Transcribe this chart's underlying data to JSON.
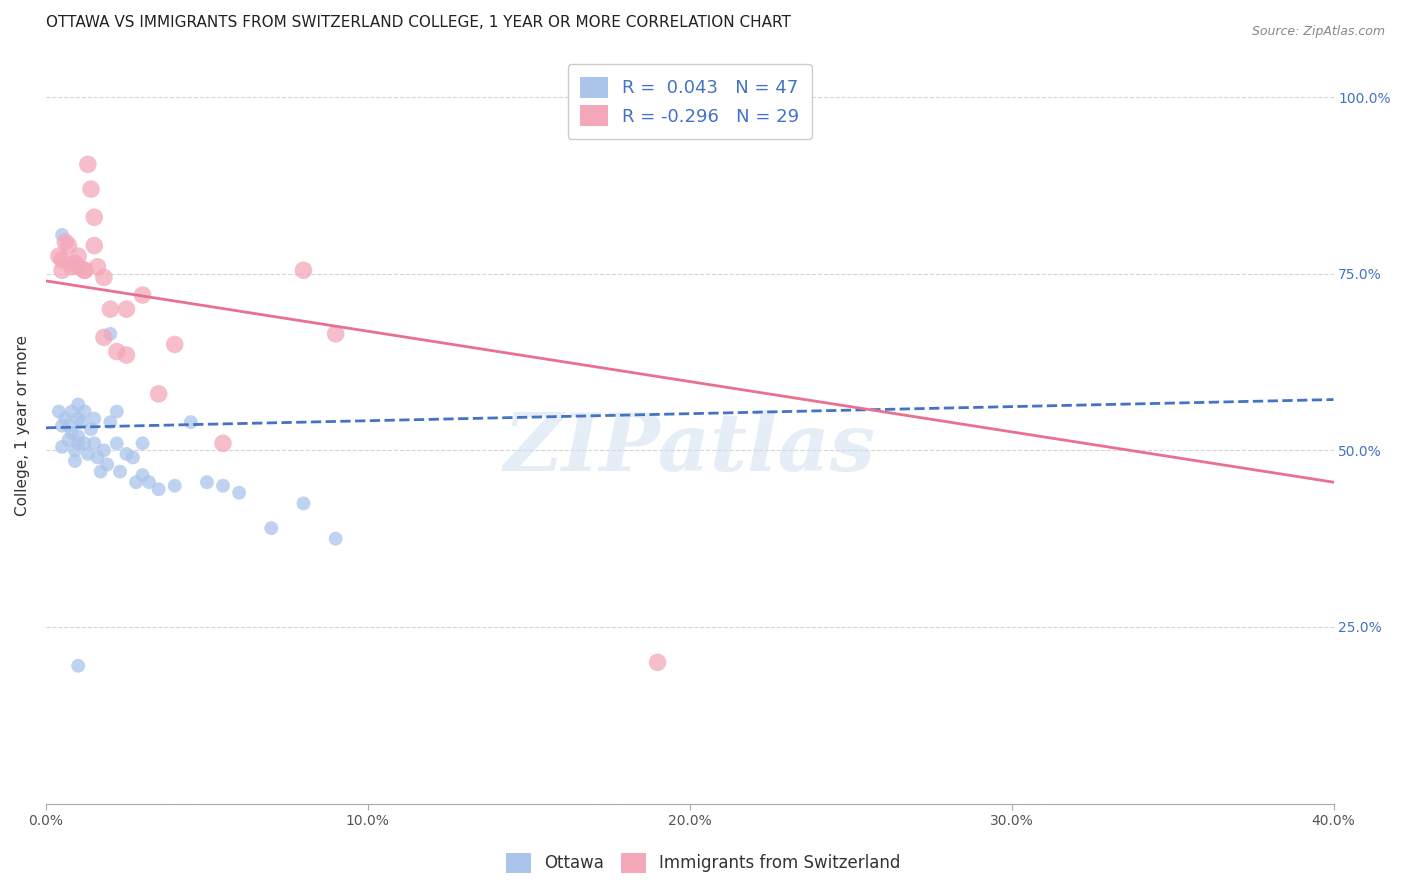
{
  "title": "OTTAWA VS IMMIGRANTS FROM SWITZERLAND COLLEGE, 1 YEAR OR MORE CORRELATION CHART",
  "source": "Source: ZipAtlas.com",
  "ylabel": "College, 1 year or more",
  "xlim": [
    0.0,
    0.4
  ],
  "ylim": [
    0.0,
    1.07
  ],
  "yticks": [
    0.0,
    0.25,
    0.5,
    0.75,
    1.0
  ],
  "ytick_labels_right": [
    "",
    "25.0%",
    "50.0%",
    "75.0%",
    "100.0%"
  ],
  "xticks": [
    0.0,
    0.1,
    0.2,
    0.3,
    0.4
  ],
  "xtick_labels": [
    "0.0%",
    "10.0%",
    "20.0%",
    "30.0%",
    "40.0%"
  ],
  "ottawa_color": "#aac4ea",
  "immigrants_color": "#f4a7b9",
  "ottawa_R": 0.043,
  "ottawa_N": 47,
  "immigrants_R": -0.296,
  "immigrants_N": 29,
  "watermark": "ZIPatlas",
  "background_color": "#ffffff",
  "grid_color": "#cccccc",
  "ottawa_scatter": [
    [
      0.004,
      0.555
    ],
    [
      0.005,
      0.535
    ],
    [
      0.005,
      0.505
    ],
    [
      0.006,
      0.545
    ],
    [
      0.007,
      0.535
    ],
    [
      0.007,
      0.515
    ],
    [
      0.008,
      0.555
    ],
    [
      0.008,
      0.525
    ],
    [
      0.009,
      0.5
    ],
    [
      0.009,
      0.485
    ],
    [
      0.01,
      0.565
    ],
    [
      0.01,
      0.545
    ],
    [
      0.01,
      0.52
    ],
    [
      0.01,
      0.51
    ],
    [
      0.011,
      0.54
    ],
    [
      0.012,
      0.555
    ],
    [
      0.012,
      0.51
    ],
    [
      0.013,
      0.495
    ],
    [
      0.014,
      0.53
    ],
    [
      0.015,
      0.545
    ],
    [
      0.015,
      0.51
    ],
    [
      0.016,
      0.49
    ],
    [
      0.017,
      0.47
    ],
    [
      0.018,
      0.5
    ],
    [
      0.019,
      0.48
    ],
    [
      0.02,
      0.54
    ],
    [
      0.022,
      0.555
    ],
    [
      0.022,
      0.51
    ],
    [
      0.023,
      0.47
    ],
    [
      0.025,
      0.495
    ],
    [
      0.027,
      0.49
    ],
    [
      0.028,
      0.455
    ],
    [
      0.03,
      0.51
    ],
    [
      0.03,
      0.465
    ],
    [
      0.032,
      0.455
    ],
    [
      0.035,
      0.445
    ],
    [
      0.04,
      0.45
    ],
    [
      0.045,
      0.54
    ],
    [
      0.05,
      0.455
    ],
    [
      0.055,
      0.45
    ],
    [
      0.06,
      0.44
    ],
    [
      0.07,
      0.39
    ],
    [
      0.08,
      0.425
    ],
    [
      0.09,
      0.375
    ],
    [
      0.01,
      0.195
    ],
    [
      0.02,
      0.665
    ],
    [
      0.005,
      0.805
    ]
  ],
  "immigrants_scatter": [
    [
      0.004,
      0.775
    ],
    [
      0.005,
      0.77
    ],
    [
      0.005,
      0.755
    ],
    [
      0.006,
      0.795
    ],
    [
      0.007,
      0.79
    ],
    [
      0.008,
      0.76
    ],
    [
      0.009,
      0.765
    ],
    [
      0.01,
      0.775
    ],
    [
      0.01,
      0.76
    ],
    [
      0.012,
      0.755
    ],
    [
      0.012,
      0.755
    ],
    [
      0.013,
      0.905
    ],
    [
      0.014,
      0.87
    ],
    [
      0.015,
      0.83
    ],
    [
      0.015,
      0.79
    ],
    [
      0.016,
      0.76
    ],
    [
      0.018,
      0.745
    ],
    [
      0.018,
      0.66
    ],
    [
      0.02,
      0.7
    ],
    [
      0.022,
      0.64
    ],
    [
      0.025,
      0.7
    ],
    [
      0.025,
      0.635
    ],
    [
      0.03,
      0.72
    ],
    [
      0.035,
      0.58
    ],
    [
      0.04,
      0.65
    ],
    [
      0.055,
      0.51
    ],
    [
      0.08,
      0.755
    ],
    [
      0.09,
      0.665
    ],
    [
      0.19,
      0.2
    ]
  ],
  "ottawa_line_color": "#4472c4",
  "immigrants_line_color": "#e87090",
  "ottawa_line_x": [
    0.0,
    0.4
  ],
  "ottawa_line_y": [
    0.532,
    0.572
  ],
  "immigrants_line_x": [
    0.0,
    0.4
  ],
  "immigrants_line_y": [
    0.74,
    0.455
  ],
  "title_fontsize": 11,
  "axis_label_fontsize": 11,
  "tick_fontsize": 10,
  "dot_size_ottawa": 100,
  "dot_size_immigrants": 160
}
